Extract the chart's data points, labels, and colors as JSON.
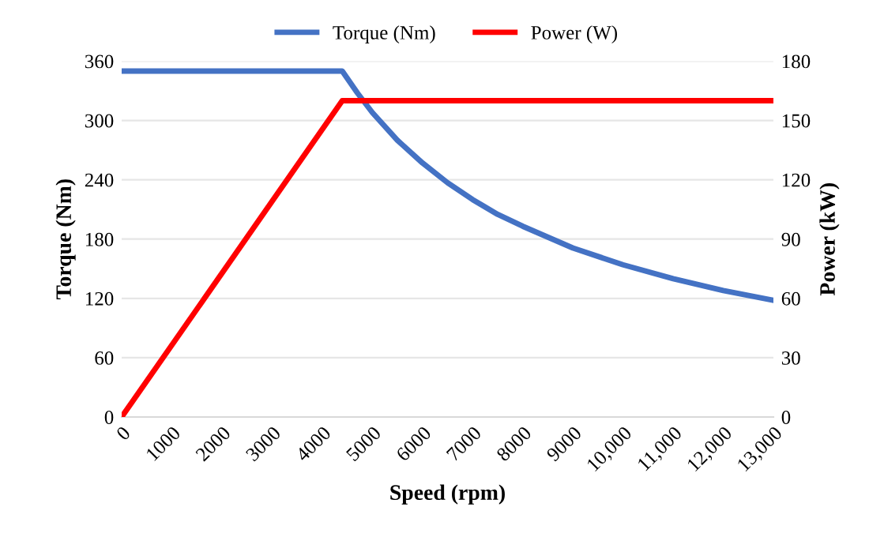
{
  "chart_data": {
    "type": "line",
    "xlabel": "Speed (rpm)",
    "ylabel": "Torque (Nm)",
    "y2label": "Power (kW)",
    "xlim": [
      0,
      13000
    ],
    "xticks": [
      0,
      1000,
      2000,
      3000,
      4000,
      5000,
      6000,
      7000,
      8000,
      9000,
      {
        "value": 10000,
        "label": "10,000"
      },
      {
        "value": 11000,
        "label": "11,000"
      },
      {
        "value": 12000,
        "label": "12,000"
      },
      {
        "value": 13000,
        "label": "13,000"
      }
    ],
    "ylim": [
      0,
      360
    ],
    "yticks": [
      0,
      60,
      120,
      180,
      240,
      300,
      360
    ],
    "y2lim": [
      0,
      180
    ],
    "y2ticks": [
      0,
      30,
      60,
      90,
      120,
      150,
      180
    ],
    "grid": "y",
    "legend": "top",
    "marker": "none",
    "line_style": "solid",
    "series": [
      {
        "name": "Torque (Nm)",
        "color": "#4472c4",
        "x": [
          0,
          4400,
          4700,
          5000,
          5500,
          6000,
          6500,
          7000,
          7500,
          8000,
          9000,
          10000,
          11000,
          12000,
          13000
        ],
        "values": [
          350,
          350,
          328,
          308,
          280,
          257,
          237,
          220,
          205,
          193,
          171,
          154,
          140,
          128,
          118
        ]
      },
      {
        "name": "Power (W)",
        "color": "#ff0000",
        "axis": "y2",
        "x": [
          0,
          4400,
          13000
        ],
        "values": [
          0,
          160,
          160
        ]
      }
    ]
  }
}
